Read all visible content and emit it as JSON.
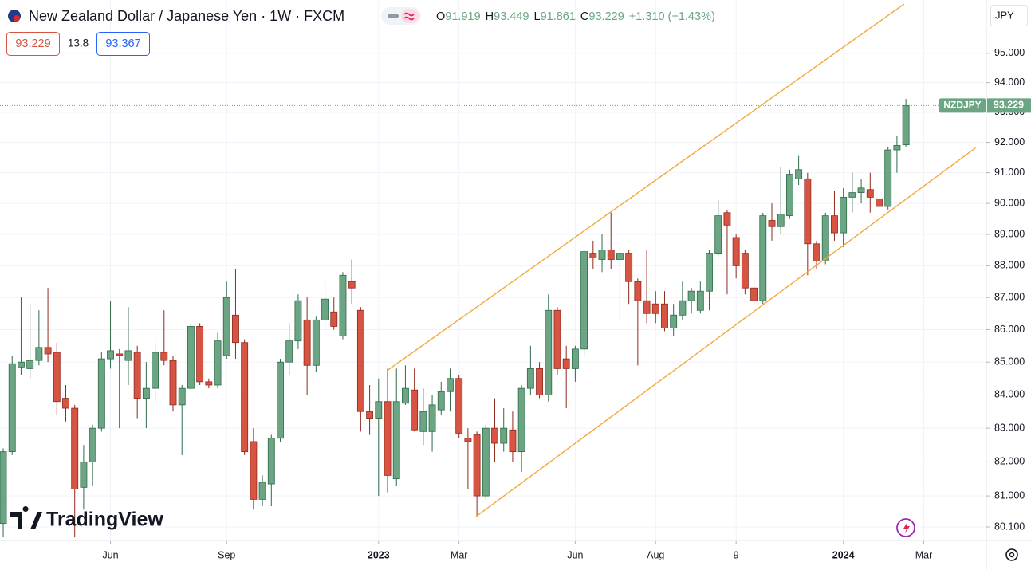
{
  "chart_data": {
    "type": "candlestick",
    "title": "New Zealand Dollar / Japanese Yen · 1W · FXCM",
    "ohlc_header": [
      {
        "key": "O",
        "value": "91.919"
      },
      {
        "key": "H",
        "value": "93.449"
      },
      {
        "key": "L",
        "value": "91.861"
      },
      {
        "key": "C",
        "value": "93.229"
      }
    ],
    "change": "+1.310 (+1.43%)",
    "sell_price": "93.229",
    "spread": "13.8",
    "buy_price": "93.367",
    "currency": "JPY",
    "symbol": "NZDJPY",
    "brand": "TradingView",
    "up_color": "#6ba583",
    "down_color": "#d75442",
    "log_scale": true,
    "grid": true,
    "xlim": [
      -0.36,
      110.0
    ],
    "ylim": [
      79.71,
      96.84
    ],
    "xticks": [
      {
        "value": 12,
        "label": "Jun"
      },
      {
        "value": 25,
        "label": "Sep"
      },
      {
        "value": 42,
        "label": "2023"
      },
      {
        "value": 51,
        "label": "Mar"
      },
      {
        "value": 64,
        "label": "Jun"
      },
      {
        "value": 73,
        "label": "Aug"
      },
      {
        "value": 82,
        "label": "9"
      },
      {
        "value": 94,
        "label": "2024"
      },
      {
        "value": 103,
        "label": "Mar"
      }
    ],
    "yticks": [
      {
        "value": 95,
        "label": "95.000"
      },
      {
        "value": 94,
        "label": "94.000"
      },
      {
        "value": 93,
        "label": "93.000"
      },
      {
        "value": 92,
        "label": "92.000"
      },
      {
        "value": 91,
        "label": "91.000"
      },
      {
        "value": 90,
        "label": "90.000"
      },
      {
        "value": 89,
        "label": "89.000"
      },
      {
        "value": 88,
        "label": "88.000"
      },
      {
        "value": 87,
        "label": "87.000"
      },
      {
        "value": 86,
        "label": "86.000"
      },
      {
        "value": 85,
        "label": "85.000"
      },
      {
        "value": 84,
        "label": "84.000"
      },
      {
        "value": 83,
        "label": "83.000"
      },
      {
        "value": 82,
        "label": "82.000"
      },
      {
        "value": 81,
        "label": "81.000"
      },
      {
        "value": 80.1,
        "label": "80.100"
      }
    ],
    "open": [
      80.2,
      82.3,
      84.85,
      84.8,
      85.05,
      85.45,
      85.3,
      83.9,
      83.6,
      81.25,
      82.0,
      83.0,
      85.1,
      85.25,
      85.05,
      85.3,
      83.9,
      84.2,
      85.3,
      85.05,
      83.7,
      84.2,
      86.1,
      84.4,
      84.3,
      85.2,
      86.45,
      85.6,
      82.6,
      80.9,
      81.35,
      82.7,
      85.0,
      85.65,
      86.3,
      84.9,
      86.3,
      86.55,
      85.8,
      87.5,
      86.6,
      83.5,
      83.3,
      83.8,
      81.5,
      83.75,
      84.15,
      82.9,
      82.9,
      83.55,
      84.1,
      84.5,
      82.7,
      82.8,
      81.0,
      83.0,
      82.55,
      82.95,
      82.3,
      84.2,
      84.8,
      84.0,
      86.6,
      85.1,
      84.8,
      85.4,
      88.4,
      88.2,
      88.5,
      88.2,
      88.4,
      87.5,
      86.9,
      86.8,
      86.8,
      86.05,
      86.45,
      86.9,
      86.6,
      87.2,
      88.4,
      89.7,
      88.9,
      88.4,
      87.3,
      86.9,
      89.45,
      89.25,
      89.6,
      90.8,
      90.8,
      88.7,
      88.15,
      89.6,
      89.05,
      90.2,
      90.35,
      90.45,
      90.15,
      89.9,
      91.75,
      91.919
    ],
    "high": [
      82.4,
      85.2,
      87.0,
      86.8,
      86.6,
      87.3,
      85.6,
      84.3,
      83.7,
      82.5,
      83.1,
      85.3,
      86.9,
      85.4,
      86.7,
      85.5,
      85.0,
      85.6,
      86.6,
      85.2,
      84.3,
      86.2,
      86.2,
      84.5,
      85.9,
      87.5,
      87.9,
      85.7,
      83.0,
      81.6,
      82.8,
      85.1,
      86.2,
      87.1,
      87.0,
      86.4,
      87.5,
      87.0,
      87.8,
      88.2,
      86.7,
      84.3,
      84.5,
      84.8,
      84.8,
      84.9,
      84.8,
      84.2,
      84.0,
      84.4,
      84.8,
      84.6,
      83.0,
      82.9,
      83.1,
      83.9,
      83.6,
      83.5,
      84.3,
      85.5,
      85.0,
      87.1,
      86.7,
      85.5,
      85.5,
      88.5,
      88.8,
      89.0,
      89.7,
      88.6,
      88.5,
      87.6,
      88.5,
      87.2,
      87.2,
      86.8,
      87.5,
      87.3,
      87.5,
      88.5,
      90.1,
      89.8,
      89.0,
      88.5,
      87.6,
      89.7,
      90.0,
      91.2,
      91.1,
      91.55,
      91.0,
      88.8,
      89.7,
      90.4,
      90.5,
      91.0,
      90.8,
      91.0,
      90.9,
      91.85,
      92.2,
      93.449
    ],
    "low": [
      79.8,
      82.2,
      84.6,
      84.5,
      84.9,
      85.0,
      83.4,
      83.2,
      79.8,
      80.6,
      81.3,
      82.9,
      84.8,
      83.0,
      84.3,
      83.3,
      83.0,
      83.8,
      84.9,
      83.5,
      82.2,
      84.1,
      84.3,
      84.2,
      84.2,
      85.1,
      85.1,
      82.2,
      80.6,
      80.7,
      80.7,
      82.6,
      84.6,
      85.4,
      84.0,
      84.7,
      85.9,
      86.0,
      85.7,
      86.8,
      82.9,
      82.8,
      81.0,
      81.1,
      81.3,
      83.7,
      82.9,
      82.5,
      82.3,
      83.4,
      83.5,
      82.7,
      81.2,
      80.4,
      80.9,
      82.0,
      82.3,
      82.0,
      81.7,
      84.0,
      83.9,
      83.8,
      84.6,
      83.6,
      84.4,
      85.2,
      87.9,
      87.8,
      87.9,
      86.3,
      86.8,
      84.9,
      86.2,
      86.2,
      85.95,
      85.8,
      86.3,
      86.5,
      86.5,
      86.6,
      88.3,
      87.1,
      87.6,
      87.1,
      86.8,
      86.8,
      88.8,
      89.0,
      89.5,
      90.6,
      87.7,
      87.9,
      88.05,
      88.8,
      88.6,
      89.7,
      90.0,
      89.7,
      89.3,
      89.8,
      91.0,
      91.861
    ],
    "close": [
      82.3,
      84.95,
      85.0,
      85.05,
      85.45,
      85.25,
      83.8,
      83.6,
      81.2,
      82.0,
      83.0,
      85.1,
      85.35,
      85.2,
      85.35,
      83.9,
      84.2,
      85.3,
      85.05,
      83.7,
      84.2,
      86.1,
      84.4,
      84.3,
      85.65,
      87.0,
      85.6,
      82.3,
      80.9,
      81.4,
      82.7,
      85.0,
      85.65,
      86.9,
      84.9,
      86.3,
      86.95,
      86.1,
      87.7,
      87.3,
      83.5,
      83.3,
      83.8,
      81.6,
      83.8,
      84.2,
      82.95,
      83.5,
      83.7,
      84.1,
      84.5,
      82.85,
      82.6,
      81.0,
      83.0,
      82.55,
      83.0,
      82.3,
      84.2,
      84.8,
      84.0,
      86.6,
      84.8,
      84.8,
      85.4,
      88.45,
      88.25,
      88.5,
      88.2,
      88.4,
      87.5,
      86.9,
      86.5,
      86.5,
      86.05,
      86.45,
      86.9,
      87.2,
      87.2,
      88.4,
      89.6,
      89.3,
      88.0,
      87.3,
      86.9,
      89.6,
      89.25,
      89.65,
      90.95,
      91.1,
      88.7,
      88.15,
      89.6,
      89.05,
      90.2,
      90.35,
      90.5,
      90.2,
      89.9,
      91.75,
      91.9,
      93.229
    ],
    "trend_lines": [
      {
        "color": "#f2a93b",
        "x": [
          43.05,
          100.8
        ],
        "y": [
          84.76,
          96.7
        ]
      },
      {
        "color": "#f2a93b",
        "x": [
          52.9,
          108.8
        ],
        "y": [
          80.4,
          91.82
        ]
      }
    ]
  }
}
